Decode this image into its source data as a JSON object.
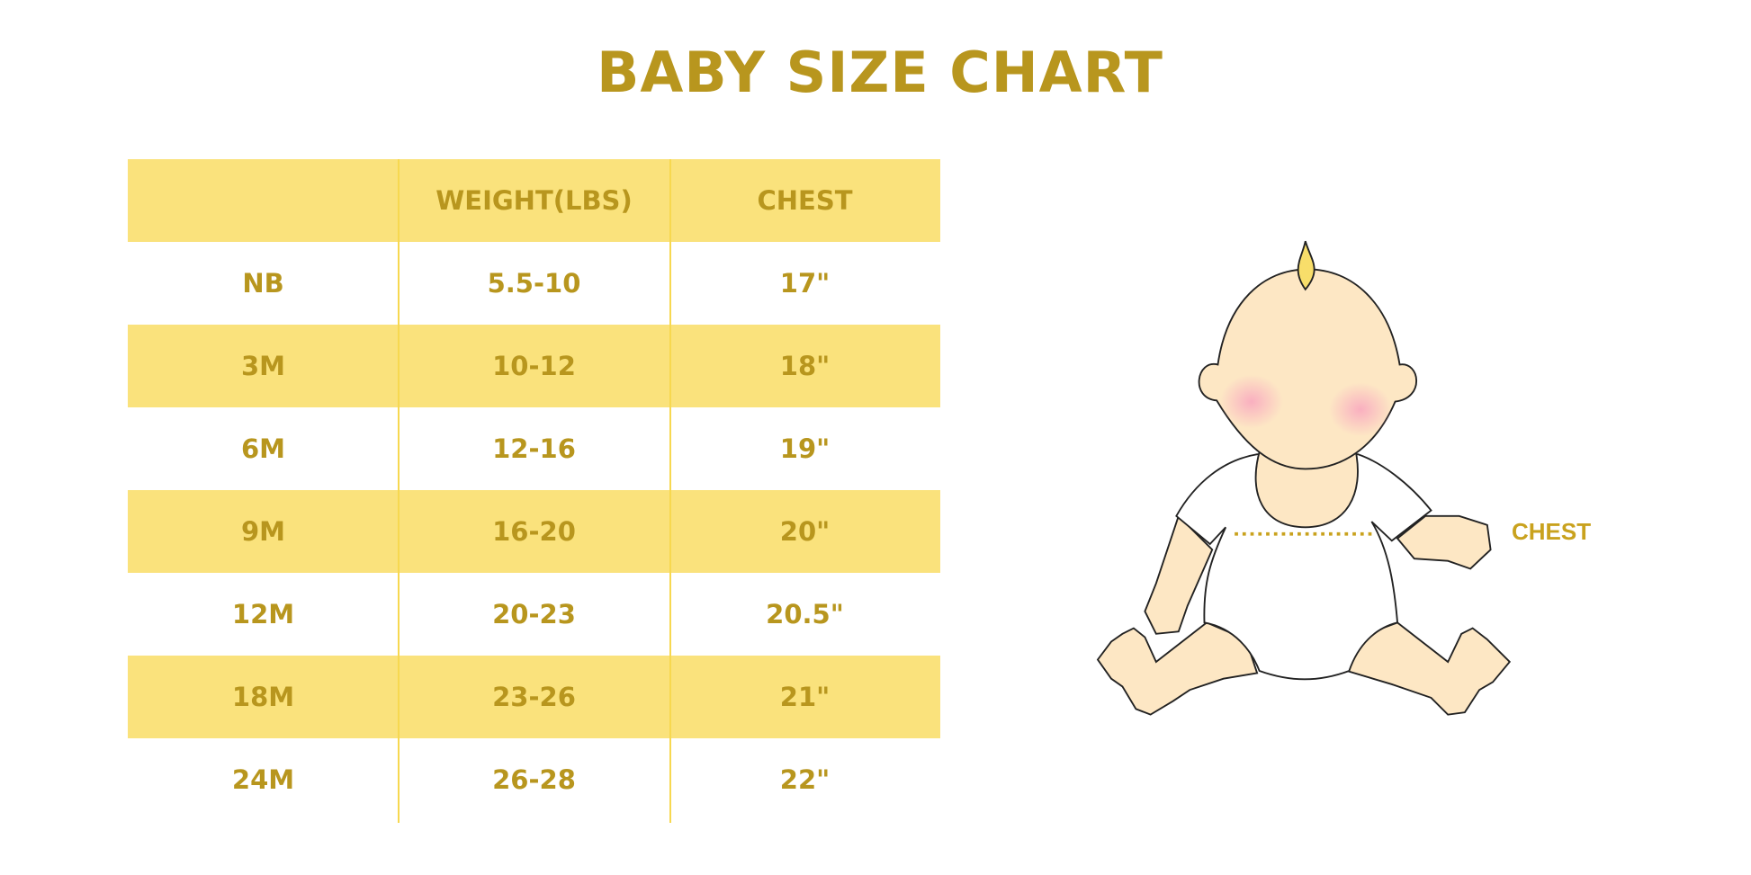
{
  "title": "BABY SIZE CHART",
  "table": {
    "headers": [
      "",
      "WEIGHT(LBS)",
      "CHEST"
    ],
    "rows": [
      [
        "NB",
        "5.5-10",
        "17\""
      ],
      [
        "3M",
        "10-12",
        "18\""
      ],
      [
        "6M",
        "12-16",
        "19\""
      ],
      [
        "9M",
        "16-20",
        "20\""
      ],
      [
        "12M",
        "20-23",
        "20.5\""
      ],
      [
        "18M",
        "23-26",
        "21\""
      ],
      [
        "24M",
        "26-28",
        "22\""
      ]
    ]
  },
  "illustration": {
    "chest_label": "CHEST"
  },
  "colors": {
    "text": "#B8961E",
    "band": "#FAE27C",
    "divider": "#F7D850",
    "skin": "#FDE7C4"
  }
}
